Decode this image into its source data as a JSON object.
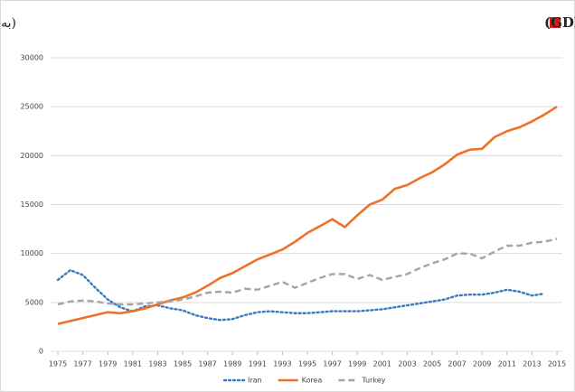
{
  "chart_data": {
    "type": "line",
    "title": "روند سرانه تولید ناخالص داخلی (GDP)",
    "subtitle": "(به دلار)",
    "x": [
      1975,
      1976,
      1977,
      1978,
      1979,
      1980,
      1981,
      1982,
      1983,
      1984,
      1985,
      1986,
      1987,
      1988,
      1989,
      1990,
      1991,
      1992,
      1993,
      1994,
      1995,
      1996,
      1997,
      1998,
      1999,
      2000,
      2001,
      2002,
      2003,
      2004,
      2005,
      2006,
      2007,
      2008,
      2009,
      2010,
      2011,
      2012,
      2013,
      2014,
      2015
    ],
    "xlim": [
      1975,
      2015
    ],
    "xticks": [
      1975,
      1977,
      1979,
      1981,
      1983,
      1985,
      1987,
      1989,
      1991,
      1993,
      1995,
      1997,
      1999,
      2001,
      2003,
      2005,
      2007,
      2009,
      2011,
      2013,
      2015
    ],
    "ylim": [
      0,
      30000
    ],
    "yticks": [
      0,
      5000,
      10000,
      15000,
      20000,
      25000,
      30000
    ],
    "grid": true,
    "legend": "bottom",
    "series": [
      {
        "name": "Iran",
        "color": "#3a78c2",
        "dash": "dotted",
        "values": [
          7300,
          8300,
          7800,
          6500,
          5300,
          4500,
          4100,
          4600,
          4700,
          4400,
          4200,
          3700,
          3400,
          3200,
          3300,
          3700,
          4000,
          4100,
          4000,
          3900,
          3900,
          4000,
          4100,
          4100,
          4100,
          4200,
          4300,
          4500,
          4700,
          4900,
          5100,
          5300,
          5700,
          5800,
          5800,
          6000,
          6300,
          6100,
          5700,
          5900,
          null
        ]
      },
      {
        "name": "Korea",
        "color": "#ee7128",
        "dash": "solid",
        "values": [
          2800,
          3100,
          3400,
          3700,
          4000,
          3900,
          4100,
          4400,
          4800,
          5200,
          5500,
          6000,
          6700,
          7500,
          8000,
          8700,
          9400,
          9900,
          10400,
          11200,
          12100,
          12800,
          13500,
          12700,
          13900,
          15000,
          15500,
          16600,
          17000,
          17700,
          18300,
          19100,
          20100,
          20600,
          20700,
          21900,
          22500,
          22900,
          23500,
          24200,
          25000
        ]
      },
      {
        "name": "Turkey",
        "color": "#a5a5a5",
        "dash": "dashed",
        "values": [
          4800,
          5100,
          5200,
          5100,
          4900,
          4800,
          4800,
          4900,
          5000,
          5100,
          5300,
          5600,
          6000,
          6100,
          6000,
          6400,
          6300,
          6700,
          7100,
          6500,
          7000,
          7500,
          7900,
          7900,
          7400,
          7800,
          7300,
          7600,
          7900,
          8500,
          9000,
          9400,
          10000,
          10000,
          9500,
          10200,
          10800,
          10800,
          11100,
          11200,
          11500
        ]
      }
    ]
  }
}
